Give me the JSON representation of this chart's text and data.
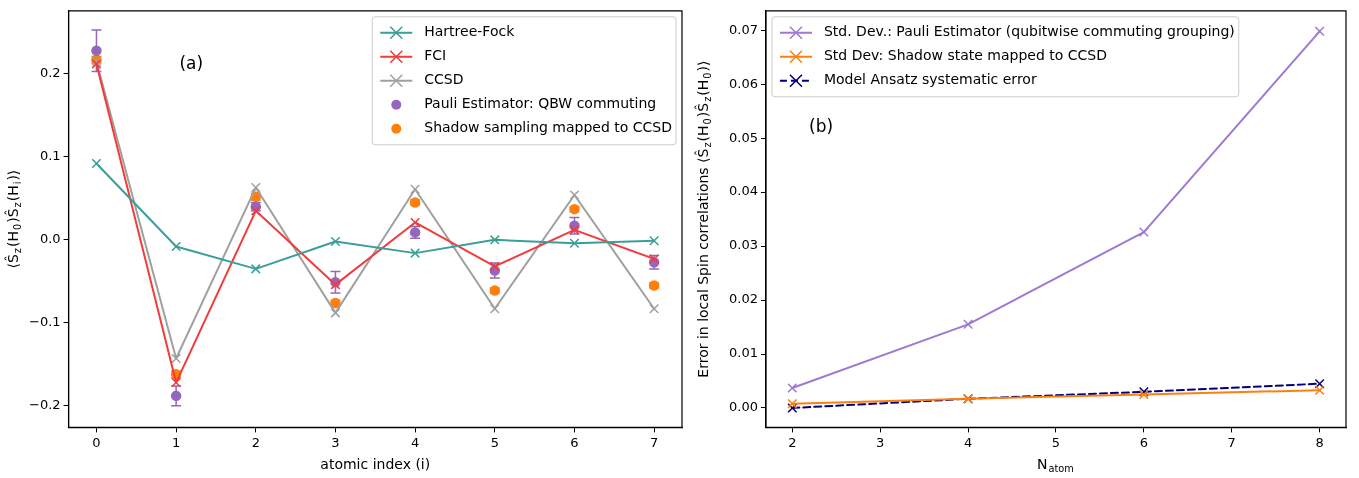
{
  "chart_data": [
    {
      "type": "line",
      "xlabel": "atomic index (i)",
      "ylabel": "⟨Ŝ$_{z}$(H$_{0}$)Ŝ$_{z}$(H$_{i}$)⟩",
      "annotations": [
        "(a)"
      ],
      "x": [
        0,
        1,
        2,
        3,
        4,
        5,
        6,
        7
      ],
      "xlim": [
        -0.35,
        7.35
      ],
      "xticks": [
        0,
        1,
        2,
        3,
        4,
        5,
        6,
        7
      ],
      "ylim": [
        -0.226,
        0.276
      ],
      "yticks": [
        {
          "value": -0.2,
          "label": "−0.2"
        },
        {
          "value": -0.1,
          "label": "−0.1"
        },
        {
          "value": 0,
          "label": "0.0"
        },
        {
          "value": 0.1,
          "label": "0.1"
        },
        {
          "value": 0.2,
          "label": "0.2"
        }
      ],
      "legend": "top right",
      "line_style": "solid",
      "series": [
        {
          "name": "Hartree-Fock",
          "type": "line",
          "marker": "cross",
          "color": "#3a9e9a",
          "values": [
            0.092,
            -0.008,
            -0.035,
            -0.002,
            -0.016,
            0.0,
            -0.004,
            -0.001
          ]
        },
        {
          "name": "FCI",
          "type": "line",
          "marker": "cross",
          "color": "#f03c3c",
          "values": [
            0.212,
            -0.172,
            0.035,
            -0.054,
            0.021,
            -0.032,
            0.012,
            -0.023
          ]
        },
        {
          "name": "CCSD",
          "type": "line",
          "marker": "cross",
          "color": "#a0a0a0",
          "values": [
            0.215,
            -0.143,
            0.063,
            -0.088,
            0.061,
            -0.083,
            0.054,
            -0.083
          ]
        },
        {
          "name": "Pauli Estimator: QBW commuting",
          "type": "scatter",
          "marker": "circle",
          "color": "#9467bd",
          "values": [
            0.228,
            -0.188,
            0.04,
            -0.051,
            0.009,
            -0.037,
            0.017,
            -0.027
          ],
          "errors": [
            0.025,
            0.012,
            0.005,
            0.013,
            0.007,
            0.009,
            0.01,
            0.008
          ]
        },
        {
          "name": "Shadow sampling mapped to CCSD",
          "type": "scatter",
          "marker": "circle",
          "color": "#ff7f0e",
          "values": [
            0.217,
            -0.162,
            0.052,
            -0.076,
            0.045,
            -0.061,
            0.037,
            -0.055
          ],
          "errors": [
            0.004,
            0.004,
            0.004,
            0.003,
            0.003,
            0.003,
            0.003,
            0.003
          ]
        }
      ]
    },
    {
      "type": "line",
      "xlabel": "N$_{atom}$",
      "ylabel": "Error in local Spin correlations ⟨Ŝ$_{z}$(H$_{0}$)Ŝ$_{z}$(H$_{0}$)⟩",
      "annotations": [
        "(b)"
      ],
      "x": [
        2,
        4,
        6,
        8
      ],
      "xlim": [
        1.7,
        8.3
      ],
      "xticks": [
        2,
        3,
        4,
        5,
        6,
        7,
        8
      ],
      "ylim": [
        -0.0036,
        0.0736
      ],
      "yticks": [
        {
          "value": 0,
          "label": "0.00"
        },
        {
          "value": 0.01,
          "label": "0.01"
        },
        {
          "value": 0.02,
          "label": "0.02"
        },
        {
          "value": 0.03,
          "label": "0.03"
        },
        {
          "value": 0.04,
          "label": "0.04"
        },
        {
          "value": 0.05,
          "label": "0.05"
        },
        {
          "value": 0.06,
          "label": "0.06"
        },
        {
          "value": 0.07,
          "label": "0.07"
        }
      ],
      "legend": "top left",
      "marker": "cross",
      "series": [
        {
          "name": "Std. Dev.: Pauli Estimator (qubitwise commuting grouping)",
          "color": "#9f79d3",
          "line_style": "solid",
          "values": [
            0.0037,
            0.0155,
            0.0326,
            0.0698
          ]
        },
        {
          "name": "Std Dev: Shadow state mapped to CCSD",
          "color": "#ff7f0e",
          "line_style": "solid",
          "values": [
            0.0008,
            0.0017,
            0.0025,
            0.0033
          ]
        },
        {
          "name": "Model Ansatz systematic error",
          "color": "#000080",
          "line_style": "dashed",
          "values": [
            0.0,
            0.0017,
            0.003,
            0.0045
          ]
        }
      ]
    }
  ]
}
